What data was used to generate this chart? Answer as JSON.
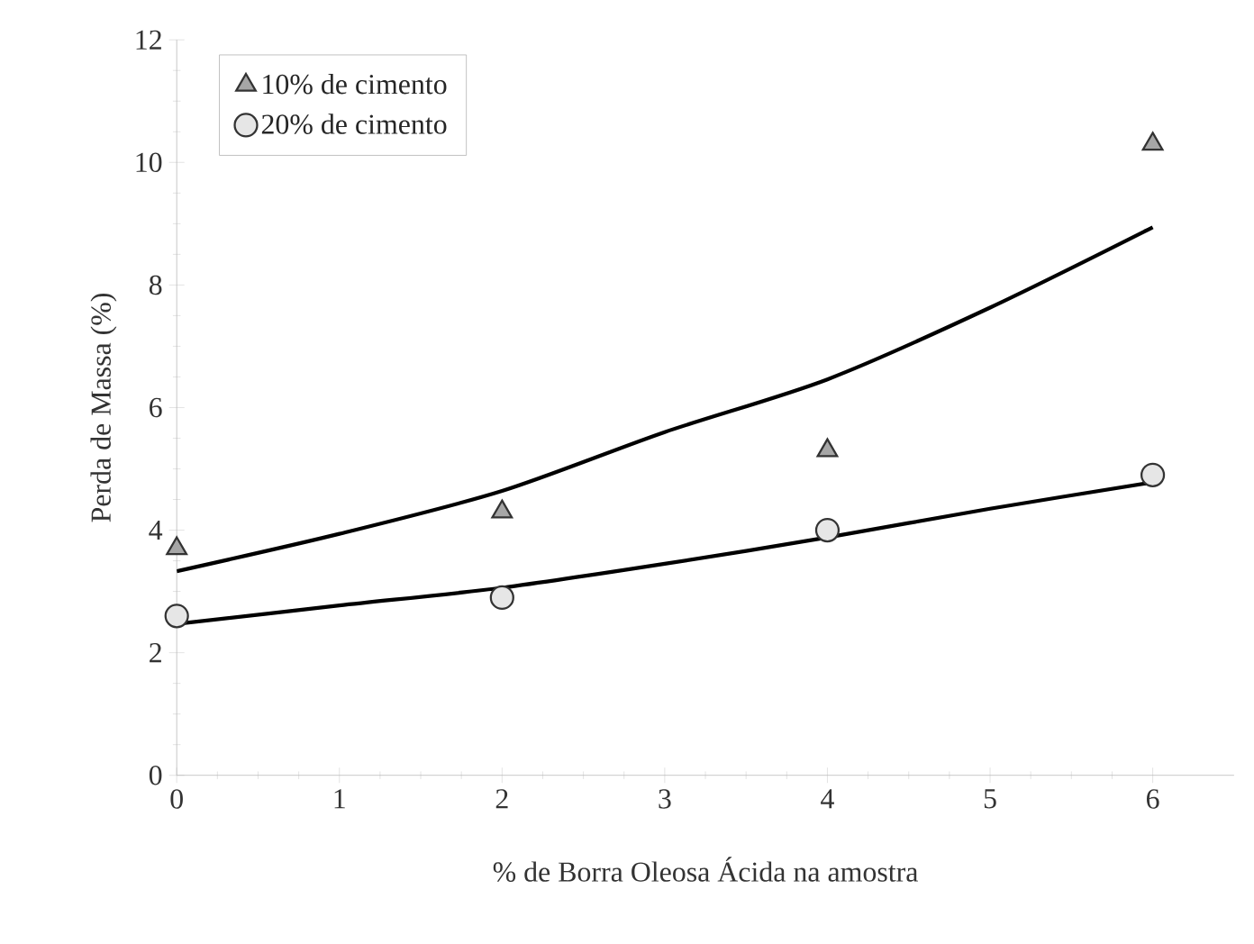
{
  "chart_data": {
    "type": "scatter",
    "xlabel": "% de Borra Oleosa Ácida na amostra",
    "ylabel": "Perda de Massa (%)",
    "xlim": [
      0,
      6.5
    ],
    "ylim": [
      0,
      12
    ],
    "xticks": [
      0,
      1,
      2,
      3,
      4,
      5,
      6
    ],
    "yticks": [
      0,
      2,
      4,
      6,
      8,
      10,
      12
    ],
    "grid": false,
    "legend": "top left",
    "series": [
      {
        "name": "10% de cimento",
        "marker": "triangle",
        "color": "#a6a6a6",
        "x": [
          0,
          2,
          4,
          6
        ],
        "values": [
          3.7,
          4.3,
          5.3,
          10.3
        ]
      },
      {
        "name": "20% de cimento",
        "marker": "circle",
        "color": "#e6e6e6",
        "x": [
          0,
          2,
          4,
          6
        ],
        "values": [
          2.6,
          2.9,
          4.0,
          4.9
        ]
      },
      {
        "type": "line",
        "marker": "none",
        "color": "#000000",
        "x": [
          0,
          1,
          2,
          3,
          4,
          5,
          6
        ],
        "values": [
          3.33,
          3.94,
          4.64,
          5.6,
          6.46,
          7.63,
          8.94
        ]
      },
      {
        "type": "line",
        "marker": "none",
        "color": "#000000",
        "x": [
          0,
          1,
          2,
          3,
          4,
          5,
          6
        ],
        "values": [
          2.47,
          2.77,
          3.06,
          3.45,
          3.88,
          4.35,
          4.78
        ]
      }
    ]
  }
}
